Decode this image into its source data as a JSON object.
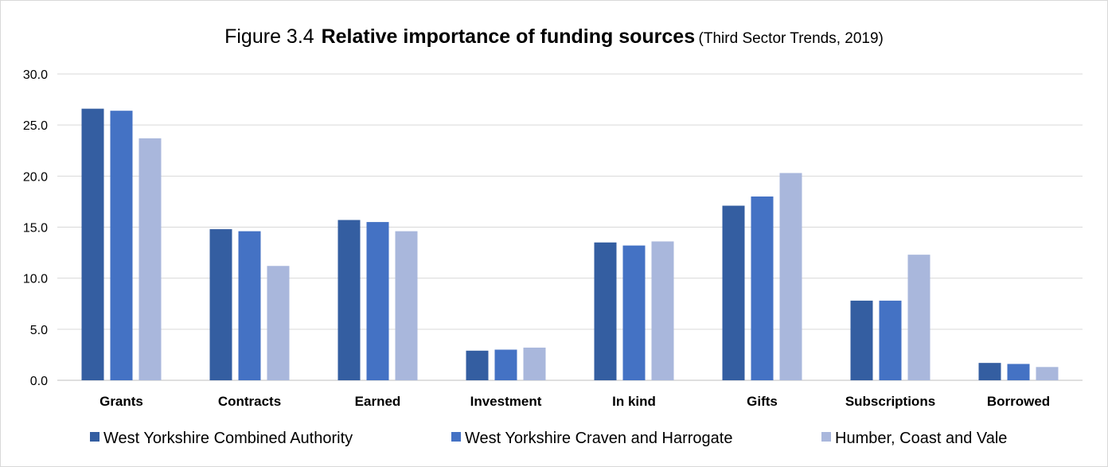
{
  "title": {
    "prefix": "Figure 3.4",
    "main": "Relative importance of funding sources",
    "suffix": "(Third Sector Trends, 2019)"
  },
  "chart_data": {
    "type": "bar",
    "title": "Figure 3.4 Relative importance of funding sources (Third Sector Trends, 2019)",
    "xlabel": "",
    "ylabel": "",
    "ylim": [
      0,
      30
    ],
    "yticks": [
      "0.0",
      "5.0",
      "10.0",
      "15.0",
      "20.0",
      "25.0",
      "30.0"
    ],
    "grid": true,
    "legend_position": "bottom",
    "categories": [
      "Grants",
      "Contracts",
      "Earned",
      "Investment",
      "In kind",
      "Gifts",
      "Subscriptions",
      "Borrowed"
    ],
    "series": [
      {
        "name": "West Yorkshire Combined Authority",
        "color": "#345ea1",
        "values": [
          26.6,
          14.8,
          15.7,
          2.9,
          13.5,
          17.1,
          7.8,
          1.7
        ]
      },
      {
        "name": "West Yorkshire Craven and Harrogate",
        "color": "#4472c4",
        "values": [
          26.4,
          14.6,
          15.5,
          3.0,
          13.2,
          18.0,
          7.8,
          1.6
        ]
      },
      {
        "name": "Humber, Coast and Vale",
        "color": "#a9b7dc",
        "values": [
          23.7,
          11.2,
          14.6,
          3.2,
          13.6,
          20.3,
          12.3,
          1.3
        ]
      }
    ]
  }
}
